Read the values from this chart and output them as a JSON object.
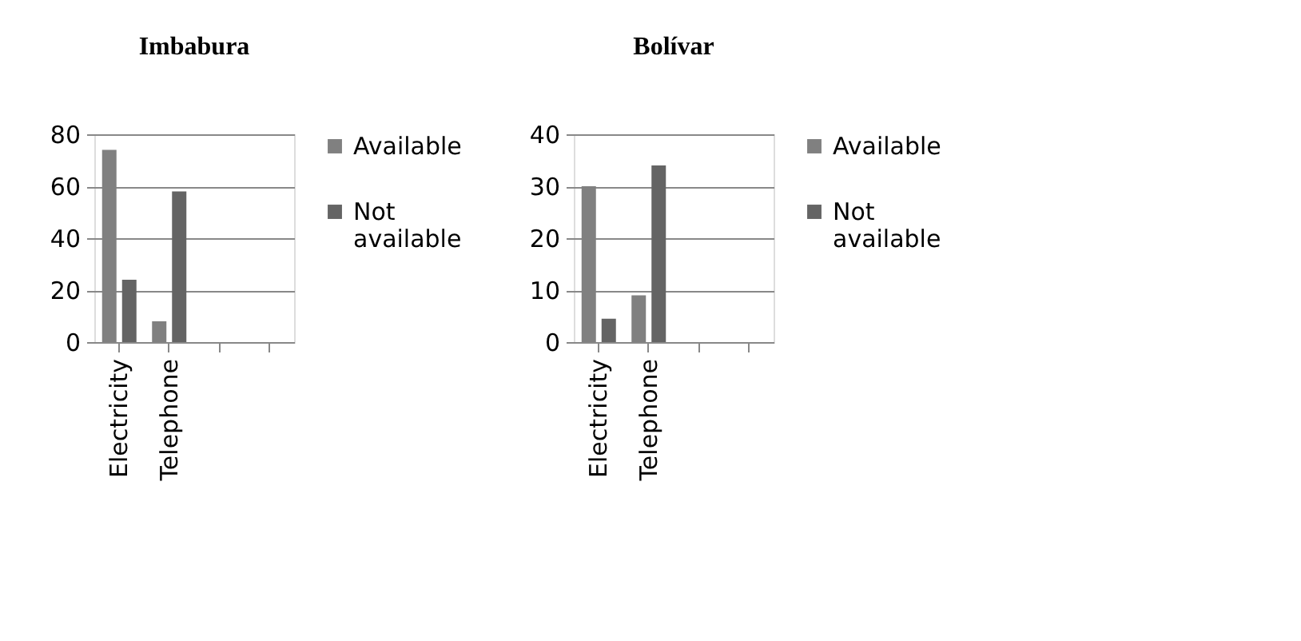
{
  "chart_data": [
    {
      "type": "bar",
      "title": "Imbabura",
      "categories": [
        "Electricity",
        "Telephone",
        null,
        null
      ],
      "series": [
        {
          "name": "Available",
          "color": "#808080",
          "values": [
            74,
            8,
            null,
            null
          ]
        },
        {
          "name": "Not available",
          "color": "#646464",
          "values": [
            24,
            58,
            null,
            null
          ]
        }
      ],
      "ylim": [
        0,
        80
      ],
      "yticks": [
        0,
        20,
        40,
        60,
        80
      ],
      "grid": "y",
      "legend": "right"
    },
    {
      "type": "bar",
      "title": "Bolívar",
      "categories": [
        "Electricity",
        "Telephone",
        null,
        null
      ],
      "series": [
        {
          "name": "Available",
          "color": "#808080",
          "values": [
            30,
            9,
            null,
            null
          ]
        },
        {
          "name": "Not available",
          "color": "#646464",
          "values": [
            4.5,
            34,
            null,
            null
          ]
        }
      ],
      "ylim": [
        0,
        40
      ],
      "yticks": [
        0,
        10,
        20,
        30,
        40
      ],
      "grid": "y",
      "legend": "right"
    }
  ]
}
